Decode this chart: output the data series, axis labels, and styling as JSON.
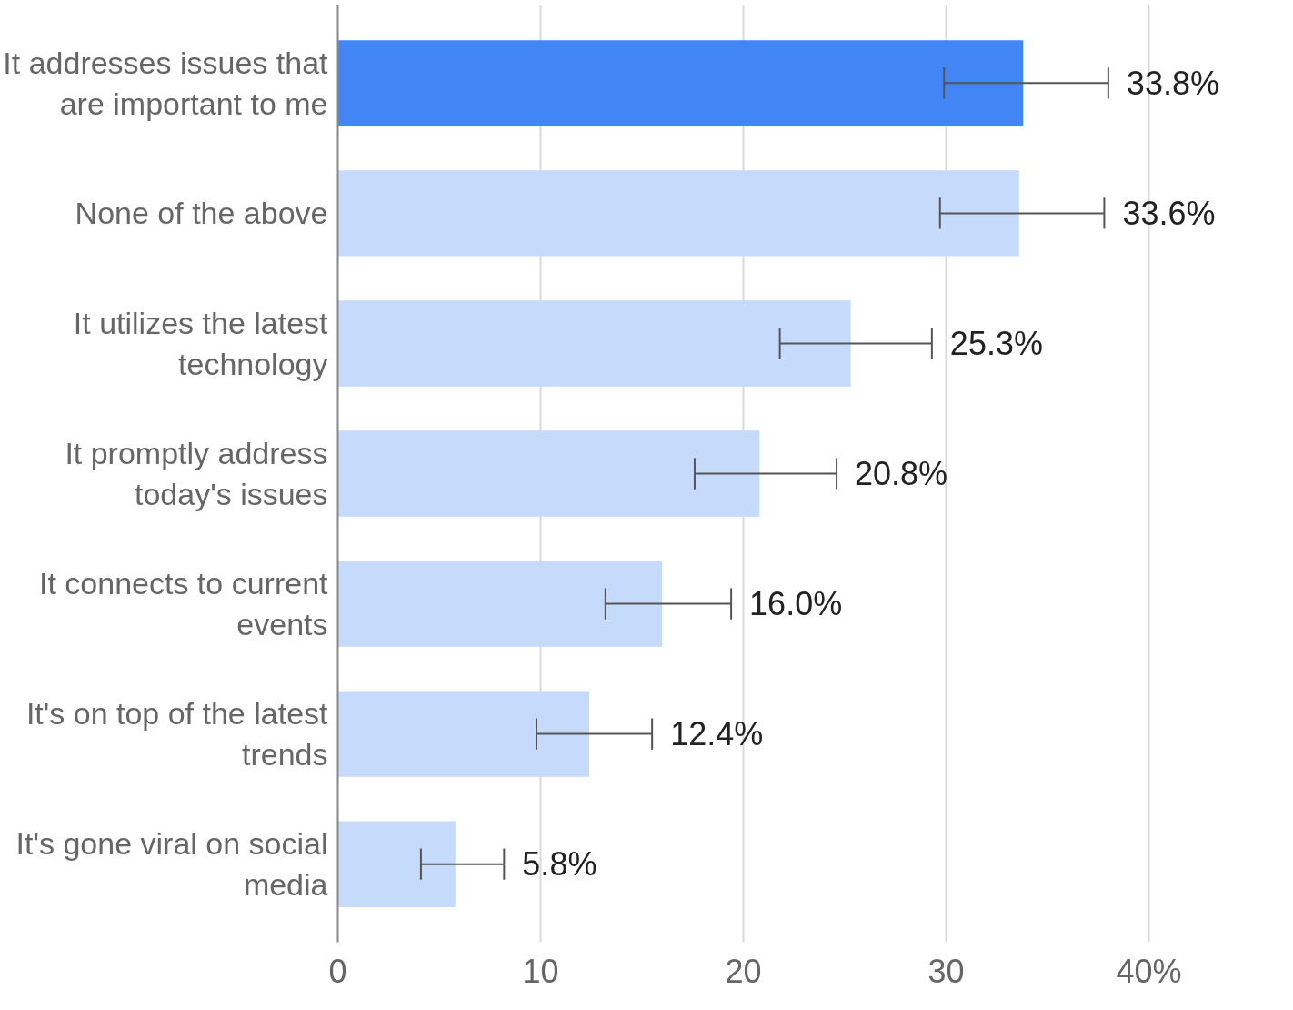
{
  "chart_data": {
    "type": "bar",
    "orientation": "horizontal",
    "categories": [
      "It addresses issues that are important to me",
      "None of the above",
      "It utilizes the latest technology",
      "It promptly address today's issues",
      "It connects to current events",
      "It's on top of the latest trends",
      "It's gone viral on social media"
    ],
    "values": [
      33.8,
      33.6,
      25.3,
      20.8,
      16.0,
      12.4,
      5.8
    ],
    "colors": [
      "#4285f4",
      "#c6dafc",
      "#c6dafc",
      "#c6dafc",
      "#c6dafc",
      "#c6dafc",
      "#c6dafc"
    ],
    "errors": [
      [
        29.9,
        38.0
      ],
      [
        29.7,
        37.8
      ],
      [
        21.8,
        29.3
      ],
      [
        17.6,
        24.6
      ],
      [
        13.2,
        19.4
      ],
      [
        9.8,
        15.5
      ],
      [
        4.1,
        8.2
      ]
    ],
    "value_labels": [
      "33.8%",
      "33.6%",
      "25.3%",
      "20.8%",
      "16.0%",
      "12.4%",
      "5.8%"
    ],
    "xlim": [
      0,
      40
    ],
    "xticks": [
      0,
      10,
      20,
      30,
      {
        "value": 40,
        "label": "40%"
      }
    ],
    "grid": "x"
  }
}
